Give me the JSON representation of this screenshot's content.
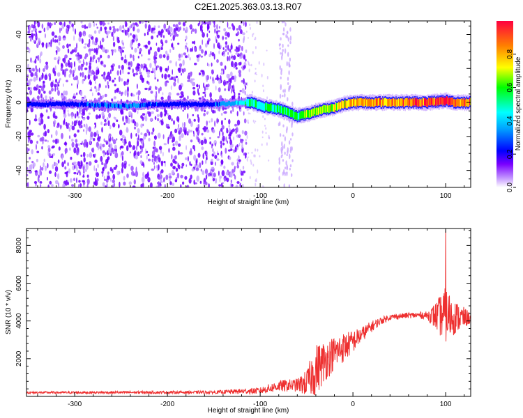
{
  "title": "C2E1.2025.363.03.13.R07",
  "chart_data": [
    {
      "type": "heatmap",
      "title": "C2E1.2025.363.03.13.R07",
      "xlabel": "Height of straight line (km)",
      "ylabel": "Frequency (Hz)",
      "xlim": [
        -352,
        127
      ],
      "ylim": [
        -50,
        48
      ],
      "xticks": [
        -300,
        -200,
        -100,
        0,
        100
      ],
      "yticks": [
        -40,
        -20,
        0,
        20,
        40
      ],
      "colorbar": {
        "label": "Normalized spectral amplitude",
        "range": [
          0,
          1
        ],
        "ticks": [
          0.0,
          0.2,
          0.4,
          0.6,
          0.8
        ],
        "colormap": [
          "#ffffff",
          "#c090ff",
          "#7a00ff",
          "#0000ff",
          "#00a0ff",
          "#00ffff",
          "#00ff00",
          "#ffff00",
          "#ff8000",
          "#ff0040"
        ]
      },
      "ridge": {
        "x": [
          -352,
          -300,
          -250,
          -200,
          -150,
          -110,
          -100,
          -80,
          -60,
          -50,
          -40,
          -20,
          -10,
          0,
          20,
          40,
          60,
          80,
          100,
          110,
          127
        ],
        "y": [
          -1,
          -1,
          -2,
          -1,
          -1,
          0,
          -2,
          -4,
          -8,
          -7,
          -5,
          -3,
          -1,
          0,
          0,
          0,
          0,
          0,
          1,
          0,
          0
        ],
        "amplitude": [
          0.2,
          0.2,
          0.25,
          0.2,
          0.2,
          0.5,
          0.45,
          0.5,
          0.55,
          0.6,
          0.65,
          0.7,
          0.72,
          0.75,
          0.8,
          0.8,
          0.85,
          0.85,
          0.95,
          0.85,
          0.8
        ]
      },
      "noise": {
        "dense_x_range": [
          -352,
          -115
        ],
        "sparse_band_x_range": [
          -80,
          -65
        ],
        "colors": [
          "#6f00ff",
          "#9a4cff",
          "#c9a8ff"
        ]
      }
    },
    {
      "type": "line",
      "xlabel": "Height of straight line (km)",
      "ylabel": "SNR (10 * v/v)",
      "xlim": [
        -352,
        127
      ],
      "ylim": [
        0,
        8900
      ],
      "xticks": [
        -300,
        -200,
        -100,
        0,
        100
      ],
      "yticks": [
        2000,
        4000,
        6000,
        8000
      ],
      "color": "#ee3030",
      "envelope": {
        "x": [
          -352,
          -150,
          -100,
          -80,
          -60,
          -50,
          -40,
          -30,
          -20,
          -10,
          0,
          10,
          20,
          30,
          40,
          60,
          80,
          90,
          100,
          110,
          127
        ],
        "y": [
          200,
          220,
          300,
          550,
          600,
          700,
          1400,
          1900,
          2300,
          2600,
          2900,
          3300,
          3700,
          4000,
          4200,
          4300,
          4300,
          4250,
          4300,
          4200,
          4150
        ],
        "noise_amplitude": [
          60,
          80,
          180,
          300,
          350,
          700,
          1400,
          1100,
          900,
          800,
          600,
          400,
          300,
          200,
          150,
          150,
          200,
          800,
          1500,
          900,
          300
        ]
      },
      "peak": {
        "x": 100,
        "y": 8800
      }
    }
  ]
}
